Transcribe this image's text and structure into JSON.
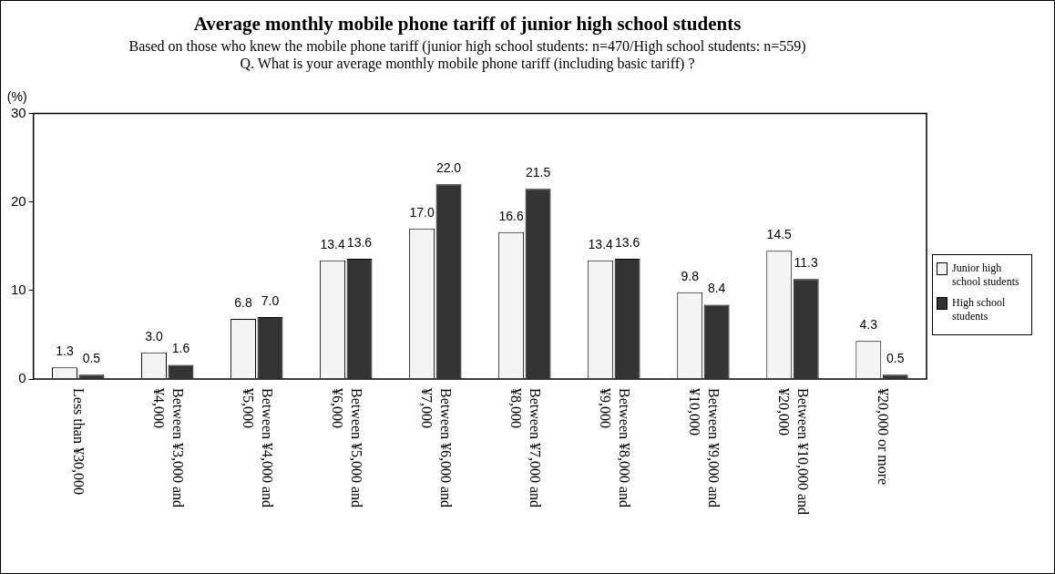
{
  "chart_data": {
    "type": "bar",
    "title": "Average monthly mobile phone tariff of junior high school students",
    "subtitle": "Based on those who knew the mobile phone tariff (junior high school students: n=470/High school students: n=559)",
    "annotations": [
      "Q. What is your average monthly mobile phone tariff (including basic tariff) ?"
    ],
    "ylabel": "(%)",
    "categories": [
      "Less than ¥30,000",
      "Between ¥3,000 and ¥4,000",
      "Between ¥4,000 and ¥5,000",
      "Between ¥5,000 and ¥6,000",
      "Between ¥6,000 and ¥7,000",
      "Between ¥7,000 and ¥8,000",
      "Between ¥8,000 and ¥9,000",
      "Between ¥9,000 and ¥10,000",
      "Between ¥10,000 and ¥20,000",
      "¥20,000 or more"
    ],
    "series": [
      {
        "name": "Junior high school students",
        "color": "#f4f4f4",
        "values": [
          1.3,
          3.0,
          6.8,
          13.4,
          17.0,
          16.6,
          13.4,
          9.8,
          14.5,
          4.3
        ],
        "value_labels": [
          "1.3",
          "3.0",
          "6.8",
          "13.4",
          "17.0",
          "16.6",
          "13.4",
          "9.8",
          "14.5",
          "4.3"
        ]
      },
      {
        "name": "High school students",
        "color": "#333333",
        "values": [
          0.5,
          1.6,
          7.0,
          13.6,
          22.0,
          21.5,
          13.6,
          8.4,
          11.3,
          0.5
        ],
        "value_labels": [
          "0.5",
          "1.6",
          "7.0",
          "13.6",
          "22.0",
          "21.5",
          "13.6",
          "8.4",
          "11.3",
          "0.5"
        ]
      }
    ],
    "ylim": [
      0,
      30
    ],
    "yticks": [
      0,
      10,
      20,
      30
    ],
    "grid": false,
    "legend": "right"
  }
}
